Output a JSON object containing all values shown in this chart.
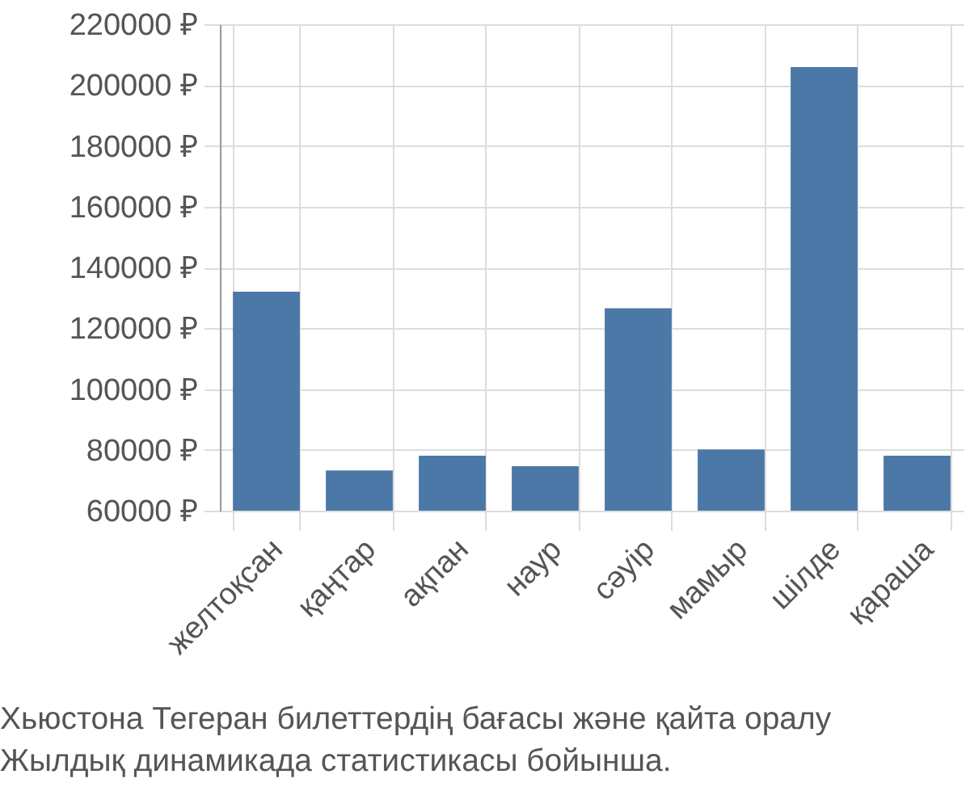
{
  "chart_data": {
    "type": "bar",
    "categories": [
      "желтоқсан",
      "қаңтар",
      "ақпан",
      "наур",
      "сәуір",
      "мамыр",
      "шілде",
      "қараша"
    ],
    "values": [
      132000,
      73200,
      78100,
      74600,
      126600,
      80100,
      205900,
      78100
    ],
    "color": "#4c78a8",
    "ylim": [
      60000,
      220000
    ],
    "yticks": [
      {
        "value": 60000,
        "label": "60000 ₽"
      },
      {
        "value": 80000,
        "label": "80000 ₽"
      },
      {
        "value": 100000,
        "label": "100000 ₽"
      },
      {
        "value": 120000,
        "label": "120000 ₽"
      },
      {
        "value": 140000,
        "label": "140000 ₽"
      },
      {
        "value": 160000,
        "label": "160000 ₽"
      },
      {
        "value": 180000,
        "label": "180000 ₽"
      },
      {
        "value": 200000,
        "label": "200000 ₽"
      },
      {
        "value": 220000,
        "label": "220000 ₽"
      }
    ],
    "grid": true,
    "annotations": [
      "Хьюстона Тегеран билеттердің бағасы және қайта оралу",
      "Жылдық динамикада статистикасы бойынша."
    ]
  }
}
